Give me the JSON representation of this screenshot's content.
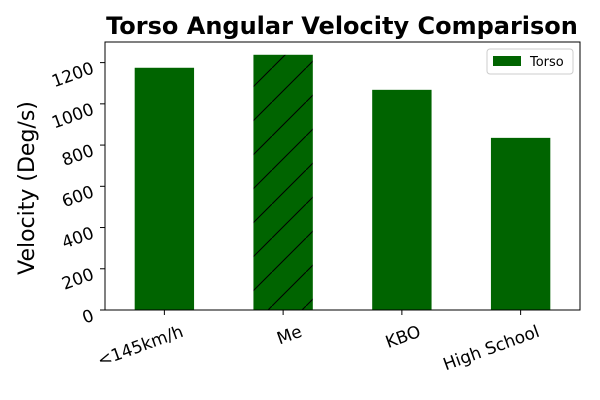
{
  "chart_data": {
    "type": "bar",
    "title": "Torso Angular Velocity Comparison",
    "xlabel": "",
    "ylabel": "Velocity (Deg/s)",
    "categories": [
      "<145km/h",
      "Me",
      "KBO",
      "High School"
    ],
    "series": [
      {
        "name": "Torso",
        "values": [
          1175,
          1238,
          1068,
          835
        ]
      }
    ],
    "hatched_category": "Me",
    "ylim": [
      0,
      1300
    ],
    "yticks": [
      0,
      200,
      400,
      600,
      800,
      1000,
      1200
    ],
    "legend": {
      "position": "top-right",
      "entries": [
        "Torso"
      ]
    },
    "grid": false,
    "colors": {
      "bar": "#006400",
      "hatch": "#000000",
      "axis": "#000000"
    }
  }
}
